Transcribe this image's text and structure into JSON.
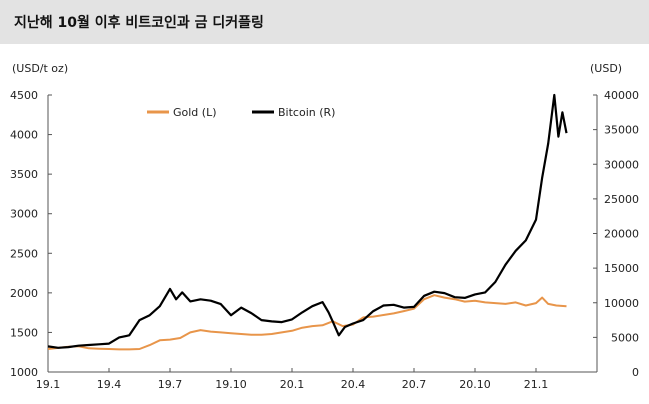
{
  "title": "지난해 10월 이후 비트코인과 금 디커플링",
  "unit_left": "(USD/t oz)",
  "unit_right": "(USD)",
  "colors": {
    "gold": "#e8954a",
    "bitcoin": "#000000",
    "title_bg": "#e3e3e3"
  },
  "chart_data": {
    "type": "line",
    "title": "지난해 10월 이후 비트코인과 금 디커플링",
    "x_tick_labels": [
      "19.1",
      "19.4",
      "19.7",
      "19.10",
      "20.1",
      "20.4",
      "20.7",
      "20.10",
      "21.1"
    ],
    "y_left": {
      "label": "(USD/t oz)",
      "range": [
        1000,
        4500
      ],
      "ticks": [
        1000,
        1500,
        2000,
        2500,
        3000,
        3500,
        4000,
        4500
      ]
    },
    "y_right": {
      "label": "(USD)",
      "range": [
        0,
        40000
      ],
      "ticks": [
        0,
        5000,
        10000,
        15000,
        20000,
        25000,
        30000,
        35000,
        40000
      ]
    },
    "grid": false,
    "legend_position": "top-left",
    "x_unit": "months since 19.1",
    "series": [
      {
        "name": "Gold (L)",
        "axis": "left",
        "points": [
          [
            0,
            1290
          ],
          [
            0.5,
            1305
          ],
          [
            1,
            1320
          ],
          [
            1.5,
            1325
          ],
          [
            2,
            1300
          ],
          [
            2.5,
            1295
          ],
          [
            3,
            1290
          ],
          [
            3.5,
            1285
          ],
          [
            4,
            1285
          ],
          [
            4.5,
            1290
          ],
          [
            5,
            1340
          ],
          [
            5.5,
            1400
          ],
          [
            6,
            1410
          ],
          [
            6.5,
            1430
          ],
          [
            7,
            1500
          ],
          [
            7.5,
            1530
          ],
          [
            8,
            1510
          ],
          [
            8.5,
            1500
          ],
          [
            9,
            1490
          ],
          [
            9.5,
            1480
          ],
          [
            10,
            1470
          ],
          [
            10.5,
            1470
          ],
          [
            11,
            1480
          ],
          [
            11.5,
            1500
          ],
          [
            12,
            1520
          ],
          [
            12.5,
            1560
          ],
          [
            13,
            1580
          ],
          [
            13.5,
            1590
          ],
          [
            14,
            1640
          ],
          [
            14.5,
            1580
          ],
          [
            15,
            1600
          ],
          [
            15.5,
            1690
          ],
          [
            16,
            1700
          ],
          [
            16.5,
            1720
          ],
          [
            17,
            1740
          ],
          [
            17.5,
            1770
          ],
          [
            18,
            1800
          ],
          [
            18.5,
            1920
          ],
          [
            19,
            1970
          ],
          [
            19.5,
            1940
          ],
          [
            20,
            1920
          ],
          [
            20.5,
            1890
          ],
          [
            21,
            1900
          ],
          [
            21.5,
            1880
          ],
          [
            22,
            1870
          ],
          [
            22.5,
            1860
          ],
          [
            23,
            1880
          ],
          [
            23.5,
            1840
          ],
          [
            24,
            1870
          ],
          [
            24.3,
            1940
          ],
          [
            24.6,
            1860
          ],
          [
            25,
            1840
          ],
          [
            25.5,
            1830
          ]
        ]
      },
      {
        "name": "Bitcoin (R)",
        "axis": "right",
        "points": [
          [
            0,
            3700
          ],
          [
            0.5,
            3500
          ],
          [
            1,
            3600
          ],
          [
            1.5,
            3800
          ],
          [
            2,
            3900
          ],
          [
            2.5,
            4000
          ],
          [
            3,
            4100
          ],
          [
            3.5,
            5000
          ],
          [
            4,
            5300
          ],
          [
            4.5,
            7500
          ],
          [
            5,
            8200
          ],
          [
            5.5,
            9500
          ],
          [
            6,
            12000
          ],
          [
            6.3,
            10500
          ],
          [
            6.6,
            11500
          ],
          [
            7,
            10200
          ],
          [
            7.5,
            10500
          ],
          [
            8,
            10300
          ],
          [
            8.5,
            9800
          ],
          [
            9,
            8200
          ],
          [
            9.5,
            9300
          ],
          [
            10,
            8500
          ],
          [
            10.5,
            7500
          ],
          [
            11,
            7300
          ],
          [
            11.5,
            7200
          ],
          [
            12,
            7600
          ],
          [
            12.5,
            8600
          ],
          [
            13,
            9500
          ],
          [
            13.5,
            10100
          ],
          [
            13.8,
            8600
          ],
          [
            14,
            7300
          ],
          [
            14.3,
            5300
          ],
          [
            14.6,
            6500
          ],
          [
            15,
            7000
          ],
          [
            15.5,
            7500
          ],
          [
            16,
            8800
          ],
          [
            16.5,
            9600
          ],
          [
            17,
            9700
          ],
          [
            17.5,
            9300
          ],
          [
            18,
            9400
          ],
          [
            18.5,
            11000
          ],
          [
            19,
            11600
          ],
          [
            19.5,
            11400
          ],
          [
            20,
            10800
          ],
          [
            20.5,
            10700
          ],
          [
            21,
            11200
          ],
          [
            21.5,
            11500
          ],
          [
            22,
            13000
          ],
          [
            22.5,
            15500
          ],
          [
            23,
            17500
          ],
          [
            23.5,
            19000
          ],
          [
            24,
            22000
          ],
          [
            24.3,
            28000
          ],
          [
            24.6,
            33000
          ],
          [
            24.9,
            40000
          ],
          [
            25.1,
            34000
          ],
          [
            25.3,
            37500
          ],
          [
            25.5,
            34500
          ]
        ]
      }
    ]
  }
}
